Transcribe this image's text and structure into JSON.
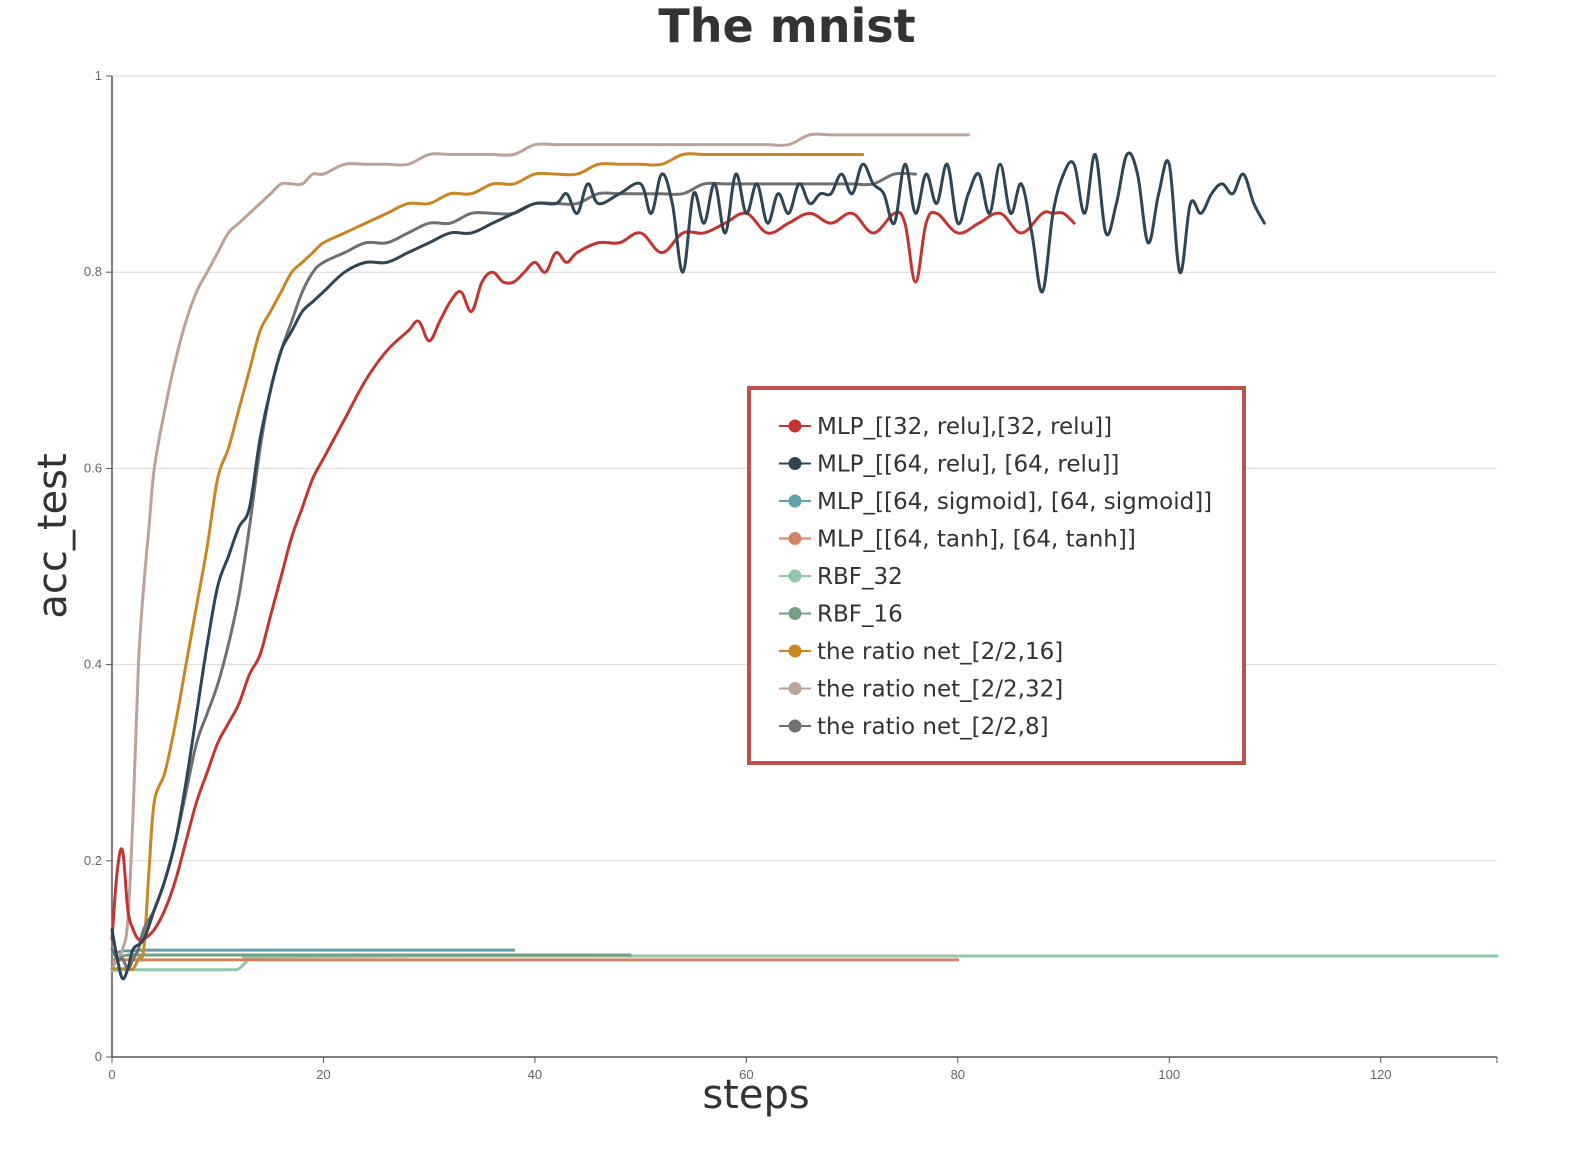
{
  "chart_data": {
    "type": "line",
    "title": "The mnist",
    "xlabel": "steps",
    "ylabel": "acc_test",
    "xlim": [
      0,
      131
    ],
    "ylim": [
      0,
      1
    ],
    "xticks": [
      "0",
      "20",
      "40",
      "60",
      "80",
      "100",
      "120"
    ],
    "yticks": [
      "0",
      "0.2",
      "0.4",
      "0.6",
      "0.8",
      "1"
    ],
    "grid": true,
    "legend_position": "center-right",
    "series": [
      {
        "name": "MLP_[[32, relu],[32, relu]]",
        "color": "#c23531",
        "x": [
          0,
          0.5,
          1,
          1.5,
          2,
          2.5,
          3,
          4,
          5,
          6,
          7,
          8,
          9,
          10,
          11,
          12,
          13,
          14,
          15,
          16,
          17,
          18,
          19,
          20,
          22,
          24,
          26,
          28,
          29,
          30,
          31,
          32,
          33,
          34,
          35,
          36,
          37,
          38,
          39,
          40,
          41,
          42,
          43,
          44,
          46,
          48,
          50,
          52,
          54,
          56,
          58,
          60,
          62,
          64,
          66,
          68,
          70,
          72,
          74,
          75,
          76,
          77,
          78,
          80,
          82,
          84,
          86,
          88,
          89,
          90,
          91
        ],
        "values": [
          0.12,
          0.19,
          0.21,
          0.15,
          0.13,
          0.12,
          0.12,
          0.13,
          0.15,
          0.18,
          0.22,
          0.26,
          0.29,
          0.32,
          0.34,
          0.36,
          0.39,
          0.41,
          0.45,
          0.49,
          0.53,
          0.56,
          0.59,
          0.61,
          0.65,
          0.69,
          0.72,
          0.74,
          0.75,
          0.73,
          0.75,
          0.77,
          0.78,
          0.76,
          0.79,
          0.8,
          0.79,
          0.79,
          0.8,
          0.81,
          0.8,
          0.82,
          0.81,
          0.82,
          0.83,
          0.83,
          0.84,
          0.82,
          0.84,
          0.84,
          0.85,
          0.86,
          0.84,
          0.85,
          0.86,
          0.85,
          0.86,
          0.84,
          0.86,
          0.85,
          0.79,
          0.85,
          0.86,
          0.84,
          0.85,
          0.86,
          0.84,
          0.86,
          0.86,
          0.86,
          0.85
        ]
      },
      {
        "name": "MLP_[[64, relu], [64, relu]]",
        "color": "#2f4554",
        "x": [
          0,
          0.5,
          1,
          1.5,
          2,
          3,
          4,
          5,
          6,
          7,
          8,
          9,
          10,
          11,
          12,
          13,
          14,
          15,
          16,
          17,
          18,
          19,
          20,
          22,
          24,
          26,
          28,
          30,
          32,
          34,
          36,
          38,
          40,
          42,
          43,
          44,
          45,
          46,
          48,
          50,
          51,
          52,
          53,
          54,
          55,
          56,
          57,
          58,
          59,
          60,
          61,
          62,
          63,
          64,
          65,
          66,
          67,
          68,
          69,
          70,
          71,
          72,
          73,
          74,
          75,
          76,
          77,
          78,
          79,
          80,
          81,
          82,
          83,
          84,
          85,
          86,
          87,
          88,
          89,
          90,
          91,
          92,
          93,
          94,
          95,
          96,
          97,
          98,
          99,
          100,
          101,
          102,
          103,
          104,
          105,
          106,
          107,
          108,
          109
        ],
        "values": [
          0.13,
          0.1,
          0.08,
          0.09,
          0.11,
          0.12,
          0.15,
          0.18,
          0.22,
          0.28,
          0.35,
          0.42,
          0.48,
          0.51,
          0.54,
          0.56,
          0.63,
          0.68,
          0.72,
          0.74,
          0.76,
          0.77,
          0.78,
          0.8,
          0.81,
          0.81,
          0.82,
          0.83,
          0.84,
          0.84,
          0.85,
          0.86,
          0.87,
          0.87,
          0.88,
          0.86,
          0.89,
          0.87,
          0.88,
          0.89,
          0.86,
          0.9,
          0.87,
          0.8,
          0.88,
          0.85,
          0.89,
          0.84,
          0.9,
          0.86,
          0.89,
          0.85,
          0.88,
          0.86,
          0.89,
          0.87,
          0.88,
          0.88,
          0.9,
          0.88,
          0.91,
          0.89,
          0.88,
          0.85,
          0.91,
          0.86,
          0.9,
          0.87,
          0.91,
          0.85,
          0.88,
          0.9,
          0.86,
          0.91,
          0.86,
          0.89,
          0.84,
          0.78,
          0.86,
          0.9,
          0.91,
          0.86,
          0.92,
          0.84,
          0.87,
          0.92,
          0.9,
          0.83,
          0.88,
          0.91,
          0.8,
          0.87,
          0.86,
          0.88,
          0.89,
          0.88,
          0.9,
          0.87,
          0.85
        ]
      },
      {
        "name": "MLP_[[64, sigmoid], [64, sigmoid]]",
        "color": "#61a0a8",
        "x": [
          0,
          1,
          2,
          3,
          10,
          20,
          30,
          38
        ],
        "values": [
          0.105,
          0.108,
          0.108,
          0.109,
          0.109,
          0.109,
          0.109,
          0.109
        ]
      },
      {
        "name": "MLP_[[64, tanh], [64, tanh]]",
        "color": "#d48265",
        "x": [
          0,
          1,
          2,
          3,
          10,
          20,
          40,
          60,
          80
        ],
        "values": [
          0.098,
          0.099,
          0.099,
          0.099,
          0.099,
          0.099,
          0.099,
          0.099,
          0.099
        ]
      },
      {
        "name": "RBF_32",
        "color": "#91c7ae",
        "x": [
          0,
          1,
          2,
          5,
          8,
          11,
          12,
          13,
          14,
          30,
          50,
          80,
          100,
          131
        ],
        "values": [
          0.088,
          0.089,
          0.089,
          0.089,
          0.089,
          0.089,
          0.09,
          0.1,
          0.102,
          0.103,
          0.103,
          0.103,
          0.103,
          0.103
        ]
      },
      {
        "name": "RBF_16",
        "color": "#749f83",
        "x": [
          0,
          1,
          2,
          3,
          10,
          20,
          30,
          40,
          49
        ],
        "values": [
          0.098,
          0.103,
          0.104,
          0.104,
          0.104,
          0.104,
          0.104,
          0.104,
          0.104
        ]
      },
      {
        "name": "the ratio net_[2/2,16]",
        "color": "#ca8622",
        "x": [
          0,
          0.5,
          1,
          1.5,
          2,
          2.5,
          3,
          3.5,
          4,
          5,
          6,
          7,
          8,
          9,
          10,
          11,
          12,
          13,
          14,
          15,
          16,
          17,
          18,
          19,
          20,
          22,
          24,
          26,
          28,
          30,
          32,
          34,
          36,
          38,
          40,
          42,
          44,
          46,
          48,
          50,
          52,
          54,
          56,
          58,
          60,
          62,
          64,
          66,
          68,
          70,
          71
        ],
        "values": [
          0.09,
          0.09,
          0.09,
          0.09,
          0.09,
          0.1,
          0.11,
          0.19,
          0.26,
          0.29,
          0.34,
          0.4,
          0.46,
          0.52,
          0.59,
          0.62,
          0.66,
          0.7,
          0.74,
          0.76,
          0.78,
          0.8,
          0.81,
          0.82,
          0.83,
          0.84,
          0.85,
          0.86,
          0.87,
          0.87,
          0.88,
          0.88,
          0.89,
          0.89,
          0.9,
          0.9,
          0.9,
          0.91,
          0.91,
          0.91,
          0.91,
          0.92,
          0.92,
          0.92,
          0.92,
          0.92,
          0.92,
          0.92,
          0.92,
          0.92,
          0.92
        ]
      },
      {
        "name": "the ratio net_[2/2,32]",
        "color": "#bda29a",
        "x": [
          0,
          0.5,
          1,
          1.5,
          2,
          2.5,
          3,
          3.5,
          4,
          5,
          6,
          7,
          8,
          9,
          10,
          11,
          12,
          13,
          14,
          15,
          16,
          17,
          18,
          19,
          20,
          22,
          24,
          26,
          28,
          30,
          32,
          34,
          36,
          38,
          40,
          42,
          44,
          46,
          48,
          50,
          52,
          54,
          56,
          58,
          60,
          62,
          64,
          66,
          68,
          70,
          72,
          74,
          76,
          78,
          80,
          81
        ],
        "values": [
          0.09,
          0.1,
          0.11,
          0.14,
          0.25,
          0.4,
          0.48,
          0.54,
          0.6,
          0.66,
          0.71,
          0.75,
          0.78,
          0.8,
          0.82,
          0.84,
          0.85,
          0.86,
          0.87,
          0.88,
          0.89,
          0.89,
          0.89,
          0.9,
          0.9,
          0.91,
          0.91,
          0.91,
          0.91,
          0.92,
          0.92,
          0.92,
          0.92,
          0.92,
          0.93,
          0.93,
          0.93,
          0.93,
          0.93,
          0.93,
          0.93,
          0.93,
          0.93,
          0.93,
          0.93,
          0.93,
          0.93,
          0.94,
          0.94,
          0.94,
          0.94,
          0.94,
          0.94,
          0.94,
          0.94,
          0.94
        ]
      },
      {
        "name": "the ratio net_[2/2,8]",
        "color": "#6e7074",
        "x": [
          0,
          0.5,
          1,
          1.5,
          2,
          2.5,
          3,
          4,
          5,
          6,
          7,
          8,
          9,
          10,
          11,
          12,
          13,
          14,
          15,
          16,
          17,
          18,
          19,
          20,
          22,
          24,
          26,
          28,
          30,
          32,
          34,
          36,
          38,
          40,
          42,
          44,
          46,
          48,
          50,
          52,
          54,
          56,
          58,
          60,
          62,
          64,
          66,
          68,
          70,
          72,
          74,
          76
        ],
        "values": [
          0.11,
          0.1,
          0.1,
          0.09,
          0.1,
          0.11,
          0.13,
          0.15,
          0.18,
          0.22,
          0.27,
          0.32,
          0.35,
          0.38,
          0.42,
          0.47,
          0.54,
          0.62,
          0.68,
          0.72,
          0.75,
          0.78,
          0.8,
          0.81,
          0.82,
          0.83,
          0.83,
          0.84,
          0.85,
          0.85,
          0.86,
          0.86,
          0.86,
          0.87,
          0.87,
          0.87,
          0.88,
          0.88,
          0.88,
          0.88,
          0.88,
          0.89,
          0.89,
          0.89,
          0.89,
          0.89,
          0.89,
          0.89,
          0.89,
          0.89,
          0.9,
          0.9
        ]
      }
    ]
  }
}
